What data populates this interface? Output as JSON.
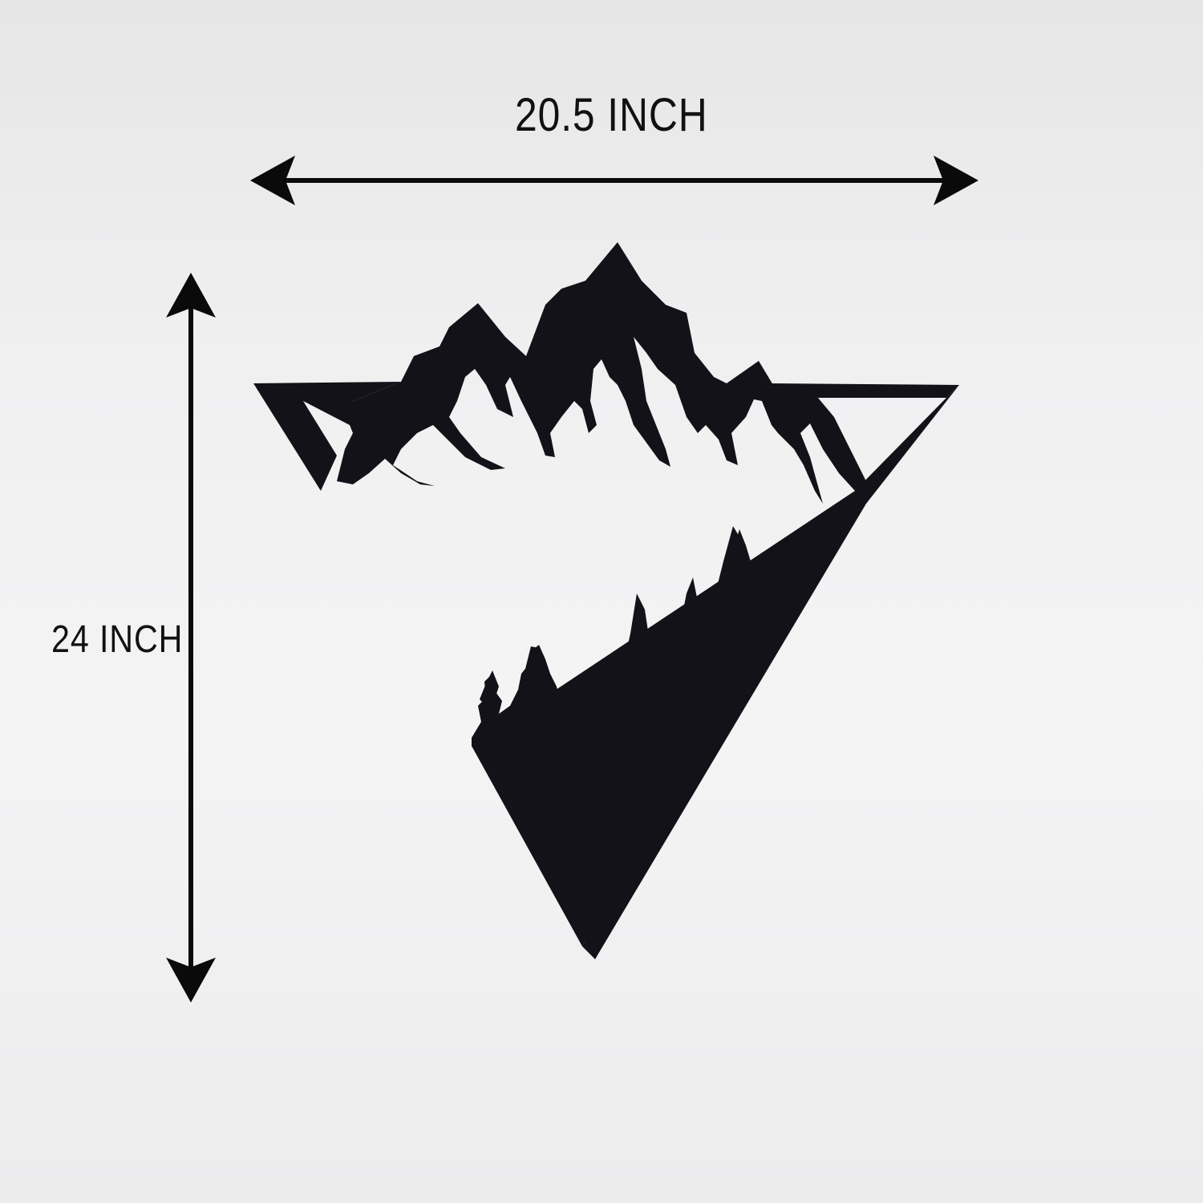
{
  "dimensions": {
    "width_label": "20.5 INCH",
    "height_label": "24 INCH"
  },
  "colors": {
    "metal": "#121218",
    "background": "#f0f0f1",
    "arrow": "#0a0a0a"
  },
  "product": {
    "icon": "mountain-forest-triangle-icon"
  }
}
